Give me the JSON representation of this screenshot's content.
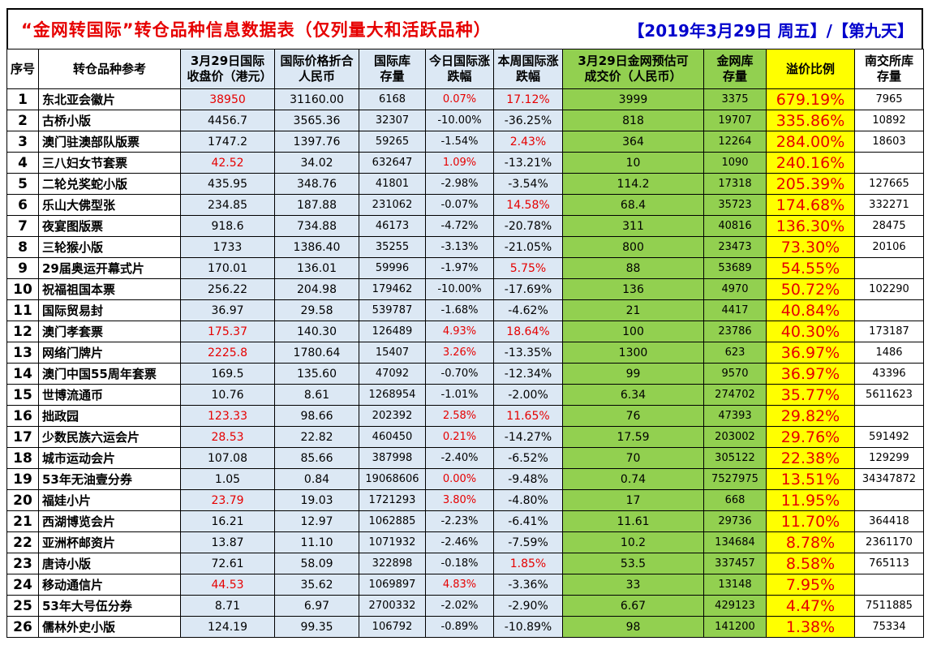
{
  "title": {
    "main": "“金网转国际”转仓品种信息数据表（仅列量大和活跃品种）",
    "date": "【2019年3月29日  周五】/【第九天】"
  },
  "headers": {
    "idx": "序号",
    "name": "转仓品种参考",
    "close_hkd": "3月29日国际收盘价（港元）",
    "rmb": "国际价格折合人民币",
    "intl_stock": "国际库存量",
    "today_chg": "今日国际涨跌幅",
    "week_chg": "本周国际涨跌幅",
    "jw_price": "3月29日金网预估可成交价（人民币）",
    "jw_stock": "金网库存量",
    "premium": "溢价比例",
    "nj_stock": "南交所库存量"
  },
  "colors": {
    "red": "#e60000",
    "blue": "#dce8f4",
    "green": "#92d050",
    "yellow": "#ffff00",
    "title_blue": "#0000cc"
  },
  "rows": [
    {
      "idx": "1",
      "name": "东北亚会徽片",
      "close": "38950",
      "close_red": true,
      "rmb": "31160.00",
      "stock": "6168",
      "today": "0.07%",
      "today_red": true,
      "week": "17.12%",
      "week_red": true,
      "jw_price": "3999",
      "jw_stock": "3375",
      "premium": "679.19%",
      "nj": "7965"
    },
    {
      "idx": "2",
      "name": "古桥小版",
      "close": "4456.7",
      "close_red": false,
      "rmb": "3565.36",
      "stock": "32307",
      "today": "-10.00%",
      "today_red": false,
      "week": "-36.25%",
      "week_red": false,
      "jw_price": "818",
      "jw_stock": "19707",
      "premium": "335.86%",
      "nj": "10892"
    },
    {
      "idx": "3",
      "name": "澳门驻澳部队版票",
      "close": "1747.2",
      "close_red": false,
      "rmb": "1397.76",
      "stock": "59265",
      "today": "-1.54%",
      "today_red": false,
      "week": "2.43%",
      "week_red": true,
      "jw_price": "364",
      "jw_stock": "12264",
      "premium": "284.00%",
      "nj": "18603"
    },
    {
      "idx": "4",
      "name": "三八妇女节套票",
      "close": "42.52",
      "close_red": true,
      "rmb": "34.02",
      "stock": "632647",
      "today": "1.09%",
      "today_red": true,
      "week": "-13.21%",
      "week_red": false,
      "jw_price": "10",
      "jw_stock": "1090",
      "premium": "240.16%",
      "nj": ""
    },
    {
      "idx": "5",
      "name": "二轮兑奖蛇小版",
      "close": "435.95",
      "close_red": false,
      "rmb": "348.76",
      "stock": "41801",
      "today": "-2.98%",
      "today_red": false,
      "week": "-3.54%",
      "week_red": false,
      "jw_price": "114.2",
      "jw_stock": "17318",
      "premium": "205.39%",
      "nj": "127665"
    },
    {
      "idx": "6",
      "name": "乐山大佛型张",
      "close": "234.85",
      "close_red": false,
      "rmb": "187.88",
      "stock": "231062",
      "today": "-0.07%",
      "today_red": false,
      "week": "14.58%",
      "week_red": true,
      "jw_price": "68.4",
      "jw_stock": "35723",
      "premium": "174.68%",
      "nj": "332271"
    },
    {
      "idx": "7",
      "name": "夜宴图版票",
      "close": "918.6",
      "close_red": false,
      "rmb": "734.88",
      "stock": "46173",
      "today": "-4.72%",
      "today_red": false,
      "week": "-20.78%",
      "week_red": false,
      "jw_price": "311",
      "jw_stock": "40816",
      "premium": "136.30%",
      "nj": "28475"
    },
    {
      "idx": "8",
      "name": "三轮猴小版",
      "close": "1733",
      "close_red": false,
      "rmb": "1386.40",
      "stock": "35255",
      "today": "-3.13%",
      "today_red": false,
      "week": "-21.05%",
      "week_red": false,
      "jw_price": "800",
      "jw_stock": "23473",
      "premium": "73.30%",
      "nj": "20106"
    },
    {
      "idx": "9",
      "name": "29届奥运开幕式片",
      "close": "170.01",
      "close_red": false,
      "rmb": "136.01",
      "stock": "59996",
      "today": "-1.97%",
      "today_red": false,
      "week": "5.75%",
      "week_red": true,
      "jw_price": "88",
      "jw_stock": "53689",
      "premium": "54.55%",
      "nj": ""
    },
    {
      "idx": "10",
      "name": "祝福祖国本票",
      "close": "256.22",
      "close_red": false,
      "rmb": "204.98",
      "stock": "179462",
      "today": "-10.00%",
      "today_red": false,
      "week": "-17.69%",
      "week_red": false,
      "jw_price": "136",
      "jw_stock": "4970",
      "premium": "50.72%",
      "nj": "102290"
    },
    {
      "idx": "11",
      "name": "国际贸易封",
      "close": "36.97",
      "close_red": false,
      "rmb": "29.58",
      "stock": "539787",
      "today": "-1.68%",
      "today_red": false,
      "week": "-4.62%",
      "week_red": false,
      "jw_price": "21",
      "jw_stock": "4417",
      "premium": "40.84%",
      "nj": ""
    },
    {
      "idx": "12",
      "name": "澳门孝套票",
      "close": "175.37",
      "close_red": true,
      "rmb": "140.30",
      "stock": "126489",
      "today": "4.93%",
      "today_red": true,
      "week": "18.64%",
      "week_red": true,
      "jw_price": "100",
      "jw_stock": "23786",
      "premium": "40.30%",
      "nj": "173187"
    },
    {
      "idx": "13",
      "name": "网络门牌片",
      "close": "2225.8",
      "close_red": true,
      "rmb": "1780.64",
      "stock": "15407",
      "today": "3.26%",
      "today_red": true,
      "week": "-13.35%",
      "week_red": false,
      "jw_price": "1300",
      "jw_stock": "623",
      "premium": "36.97%",
      "nj": "1486"
    },
    {
      "idx": "14",
      "name": "澳门中国55周年套票",
      "close": "169.5",
      "close_red": false,
      "rmb": "135.60",
      "stock": "47092",
      "today": "-0.70%",
      "today_red": false,
      "week": "-12.34%",
      "week_red": false,
      "jw_price": "99",
      "jw_stock": "9570",
      "premium": "36.97%",
      "nj": "43396"
    },
    {
      "idx": "15",
      "name": "世博流通币",
      "close": "10.76",
      "close_red": false,
      "rmb": "8.61",
      "stock": "1268954",
      "today": "-1.01%",
      "today_red": false,
      "week": "-2.00%",
      "week_red": false,
      "jw_price": "6.34",
      "jw_stock": "274702",
      "premium": "35.77%",
      "nj": "5611623"
    },
    {
      "idx": "16",
      "name": "拙政园",
      "close": "123.33",
      "close_red": true,
      "rmb": "98.66",
      "stock": "202392",
      "today": "2.58%",
      "today_red": true,
      "week": "11.65%",
      "week_red": true,
      "jw_price": "76",
      "jw_stock": "47393",
      "premium": "29.82%",
      "nj": ""
    },
    {
      "idx": "17",
      "name": "少数民族六运会片",
      "close": "28.53",
      "close_red": true,
      "rmb": "22.82",
      "stock": "460450",
      "today": "0.21%",
      "today_red": true,
      "week": "-14.27%",
      "week_red": false,
      "jw_price": "17.59",
      "jw_stock": "203002",
      "premium": "29.76%",
      "nj": "591492"
    },
    {
      "idx": "18",
      "name": "城市运动会片",
      "close": "107.08",
      "close_red": false,
      "rmb": "85.66",
      "stock": "387998",
      "today": "-2.40%",
      "today_red": false,
      "week": "-6.52%",
      "week_red": false,
      "jw_price": "70",
      "jw_stock": "305122",
      "premium": "22.38%",
      "nj": "129299"
    },
    {
      "idx": "19",
      "name": "53年无油壹分券",
      "close": "1.05",
      "close_red": false,
      "rmb": "0.84",
      "stock": "19068606",
      "today": "0.00%",
      "today_red": true,
      "week": "-9.48%",
      "week_red": false,
      "jw_price": "0.74",
      "jw_stock": "7527975",
      "premium": "13.51%",
      "nj": "34347872"
    },
    {
      "idx": "20",
      "name": "福娃小片",
      "close": "23.79",
      "close_red": true,
      "rmb": "19.03",
      "stock": "1721293",
      "today": "3.80%",
      "today_red": true,
      "week": "-4.80%",
      "week_red": false,
      "jw_price": "17",
      "jw_stock": "668",
      "premium": "11.95%",
      "nj": ""
    },
    {
      "idx": "21",
      "name": "西湖博览会片",
      "close": "16.21",
      "close_red": false,
      "rmb": "12.97",
      "stock": "1062885",
      "today": "-2.23%",
      "today_red": false,
      "week": "-6.41%",
      "week_red": false,
      "jw_price": "11.61",
      "jw_stock": "29736",
      "premium": "11.70%",
      "nj": "364418"
    },
    {
      "idx": "22",
      "name": "亚洲杯邮资片",
      "close": "13.87",
      "close_red": false,
      "rmb": "11.10",
      "stock": "1071932",
      "today": "-2.46%",
      "today_red": false,
      "week": "-7.59%",
      "week_red": false,
      "jw_price": "10.2",
      "jw_stock": "134684",
      "premium": "8.78%",
      "nj": "2361170"
    },
    {
      "idx": "23",
      "name": "唐诗小版",
      "close": "72.61",
      "close_red": false,
      "rmb": "58.09",
      "stock": "322898",
      "today": "-0.18%",
      "today_red": false,
      "week": "1.85%",
      "week_red": true,
      "jw_price": "53.5",
      "jw_stock": "337457",
      "premium": "8.58%",
      "nj": "765113"
    },
    {
      "idx": "24",
      "name": "移动通信片",
      "close": "44.53",
      "close_red": true,
      "rmb": "35.62",
      "stock": "1069897",
      "today": "4.83%",
      "today_red": true,
      "week": "-3.36%",
      "week_red": false,
      "jw_price": "33",
      "jw_stock": "13148",
      "premium": "7.95%",
      "nj": ""
    },
    {
      "idx": "25",
      "name": "53年大号伍分券",
      "close": "8.71",
      "close_red": false,
      "rmb": "6.97",
      "stock": "2700332",
      "today": "-2.02%",
      "today_red": false,
      "week": "-2.90%",
      "week_red": false,
      "jw_price": "6.67",
      "jw_stock": "429123",
      "premium": "4.47%",
      "nj": "7511885"
    },
    {
      "idx": "26",
      "name": "儒林外史小版",
      "close": "124.19",
      "close_red": false,
      "rmb": "99.35",
      "stock": "106792",
      "today": "-0.89%",
      "today_red": false,
      "week": "-10.89%",
      "week_red": false,
      "jw_price": "98",
      "jw_stock": "141200",
      "premium": "1.38%",
      "nj": "75334"
    }
  ]
}
